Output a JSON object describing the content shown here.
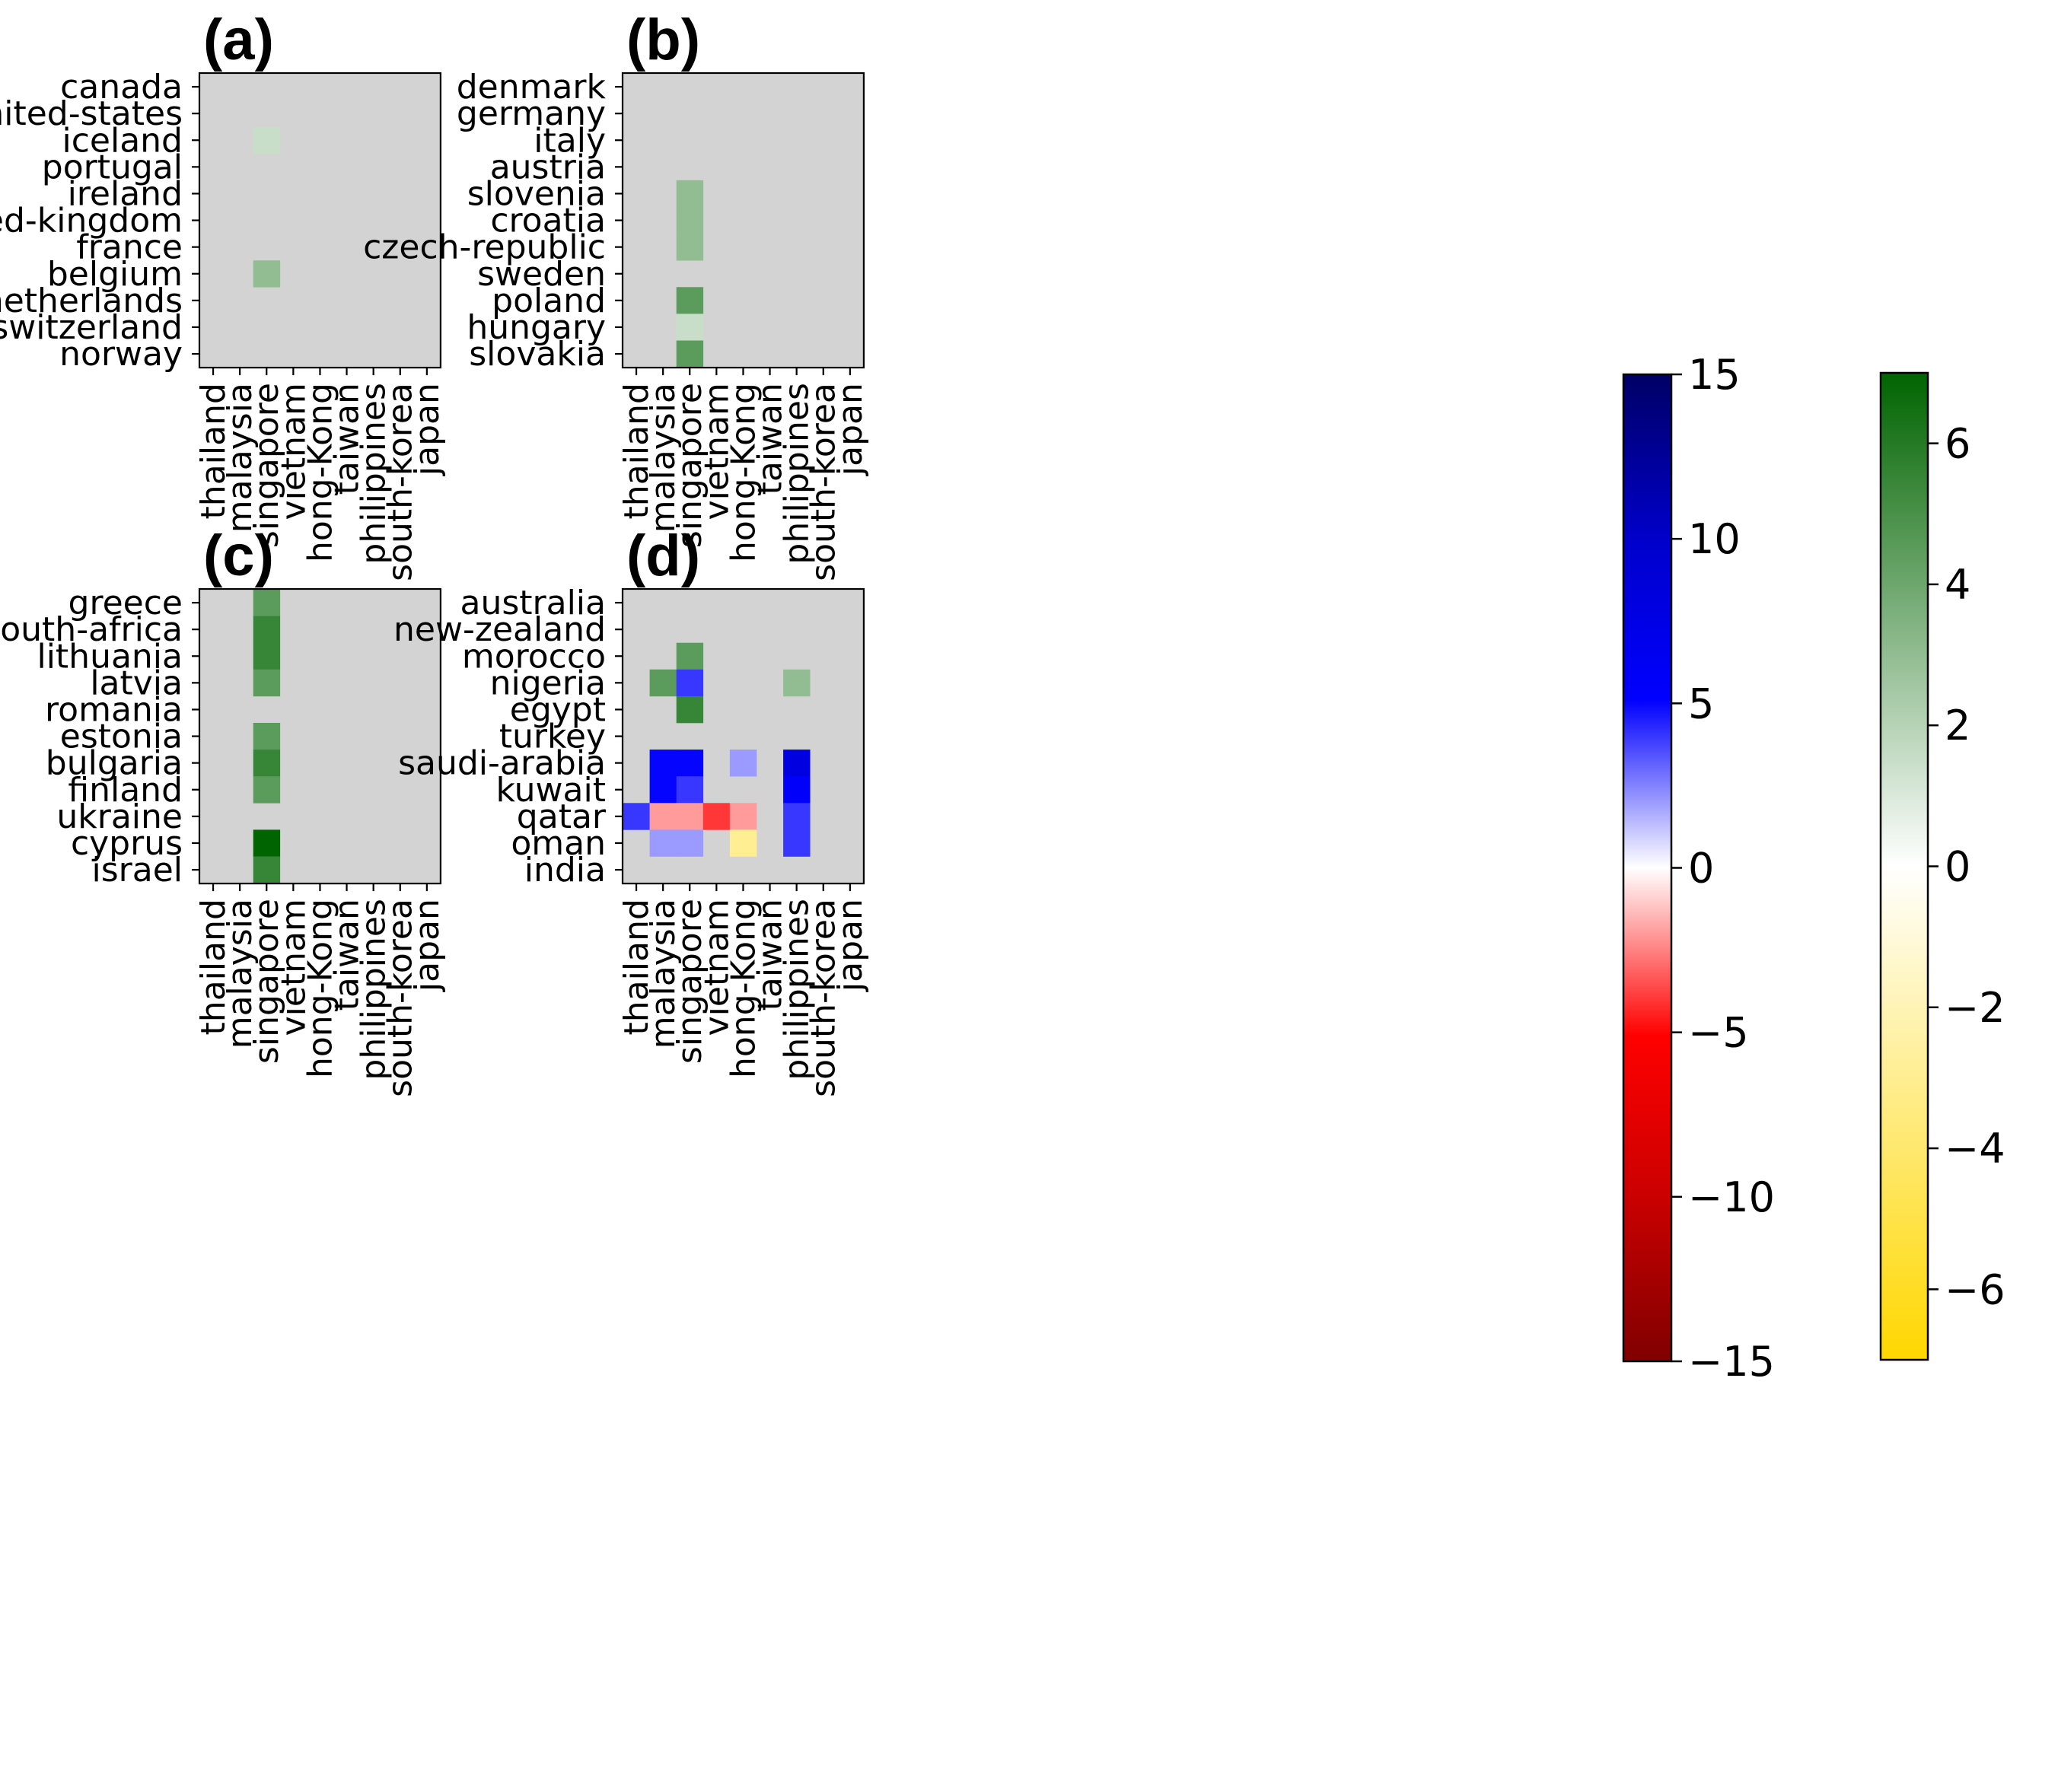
{
  "figure": {
    "colors": {
      "background": "#d3d3d3",
      "axis": "#000000"
    },
    "colormaps": {
      "diverging_blue_red": [
        [
          0,
          "#800000"
        ],
        [
          0.17,
          "#cc0000"
        ],
        [
          0.33,
          "#ff0000"
        ],
        [
          0.5,
          "#ffffff"
        ],
        [
          0.67,
          "#0000ff"
        ],
        [
          0.83,
          "#0000cc"
        ],
        [
          1,
          "#000066"
        ]
      ],
      "diverging_green_yellow": [
        [
          0,
          "#ffd700"
        ],
        [
          0.5,
          "#ffffff"
        ],
        [
          1,
          "#006400"
        ]
      ]
    }
  },
  "chart_data": [
    {
      "type": "heatmap",
      "title": "(a)",
      "columns": [
        "thailand",
        "malaysia",
        "singapore",
        "vietnam",
        "hong-Kong",
        "taiwan",
        "philippines",
        "south-korea",
        "japan"
      ],
      "rows": [
        "canada",
        "united-states",
        "iceland",
        "portugal",
        "ireland",
        "united-kingdom",
        "france",
        "belgium",
        "netherlands",
        "switzerland",
        "norway"
      ],
      "cells": [
        {
          "row": 2,
          "col": 2,
          "scale": "green",
          "value": 1.5
        },
        {
          "row": 7,
          "col": 2,
          "scale": "green",
          "value": 3.0
        }
      ]
    },
    {
      "type": "heatmap",
      "title": "(b)",
      "columns": [
        "thailand",
        "malaysia",
        "singapore",
        "vietnam",
        "hong-Kong",
        "taiwan",
        "philippines",
        "south-korea",
        "japan"
      ],
      "rows": [
        "denmark",
        "germany",
        "italy",
        "austria",
        "slovenia",
        "croatia",
        "czech-republic",
        "sweden",
        "poland",
        "hungary",
        "slovakia"
      ],
      "cells": [
        {
          "row": 4,
          "col": 2,
          "scale": "green",
          "value": 3.0
        },
        {
          "row": 5,
          "col": 2,
          "scale": "green",
          "value": 3.0
        },
        {
          "row": 6,
          "col": 2,
          "scale": "green",
          "value": 3.0
        },
        {
          "row": 8,
          "col": 2,
          "scale": "green",
          "value": 4.5
        },
        {
          "row": 9,
          "col": 2,
          "scale": "green",
          "value": 1.5
        },
        {
          "row": 10,
          "col": 2,
          "scale": "green",
          "value": 4.5
        }
      ]
    },
    {
      "type": "heatmap",
      "title": "(c)",
      "columns": [
        "thailand",
        "malaysia",
        "singapore",
        "vietnam",
        "hong-Kong",
        "taiwan",
        "philippines",
        "south-korea",
        "japan"
      ],
      "rows": [
        "greece",
        "south-africa",
        "lithuania",
        "latvia",
        "romania",
        "estonia",
        "bulgaria",
        "finland",
        "ukraine",
        "cyprus",
        "israel"
      ],
      "cells": [
        {
          "row": 0,
          "col": 2,
          "scale": "green",
          "value": 4.5
        },
        {
          "row": 1,
          "col": 2,
          "scale": "green",
          "value": 5.5
        },
        {
          "row": 2,
          "col": 2,
          "scale": "green",
          "value": 5.5
        },
        {
          "row": 3,
          "col": 2,
          "scale": "green",
          "value": 4.5
        },
        {
          "row": 5,
          "col": 2,
          "scale": "green",
          "value": 4.5
        },
        {
          "row": 6,
          "col": 2,
          "scale": "green",
          "value": 5.5
        },
        {
          "row": 7,
          "col": 2,
          "scale": "green",
          "value": 4.5
        },
        {
          "row": 9,
          "col": 2,
          "scale": "green",
          "value": 7.0
        },
        {
          "row": 10,
          "col": 2,
          "scale": "green",
          "value": 5.5
        }
      ]
    },
    {
      "type": "heatmap",
      "title": "(d)",
      "columns": [
        "thailand",
        "malaysia",
        "singapore",
        "vietnam",
        "hong-Kong",
        "taiwan",
        "philippines",
        "south-korea",
        "japan"
      ],
      "rows": [
        "australia",
        "new-zealand",
        "morocco",
        "nigeria",
        "egypt",
        "turkey",
        "saudi-arabia",
        "kuwait",
        "qatar",
        "oman",
        "india"
      ],
      "cells": [
        {
          "row": 2,
          "col": 2,
          "scale": "green",
          "value": 4.5
        },
        {
          "row": 3,
          "col": 1,
          "scale": "green",
          "value": 4.5
        },
        {
          "row": 3,
          "col": 2,
          "scale": "blue_red",
          "value": 4.0
        },
        {
          "row": 3,
          "col": 6,
          "scale": "green",
          "value": 3.0
        },
        {
          "row": 4,
          "col": 2,
          "scale": "green",
          "value": 5.5
        },
        {
          "row": 6,
          "col": 1,
          "scale": "blue_red",
          "value": 5.0
        },
        {
          "row": 6,
          "col": 2,
          "scale": "blue_red",
          "value": 5.0
        },
        {
          "row": 6,
          "col": 4,
          "scale": "blue_red",
          "value": 2.0
        },
        {
          "row": 6,
          "col": 6,
          "scale": "blue_red",
          "value": 8.0
        },
        {
          "row": 7,
          "col": 1,
          "scale": "blue_red",
          "value": 5.0
        },
        {
          "row": 7,
          "col": 2,
          "scale": "blue_red",
          "value": 4.0
        },
        {
          "row": 7,
          "col": 6,
          "scale": "blue_red",
          "value": 5.5
        },
        {
          "row": 8,
          "col": 0,
          "scale": "blue_red",
          "value": 4.0
        },
        {
          "row": 8,
          "col": 1,
          "scale": "blue_red",
          "value": -2.0
        },
        {
          "row": 8,
          "col": 2,
          "scale": "blue_red",
          "value": -2.0
        },
        {
          "row": 8,
          "col": 3,
          "scale": "blue_red",
          "value": -4.0
        },
        {
          "row": 8,
          "col": 4,
          "scale": "blue_red",
          "value": -2.0
        },
        {
          "row": 8,
          "col": 6,
          "scale": "blue_red",
          "value": 4.0
        },
        {
          "row": 9,
          "col": 1,
          "scale": "blue_red",
          "value": 2.0
        },
        {
          "row": 9,
          "col": 2,
          "scale": "blue_red",
          "value": 2.0
        },
        {
          "row": 9,
          "col": 4,
          "scale": "green",
          "value": -3.0
        },
        {
          "row": 9,
          "col": 6,
          "scale": "blue_red",
          "value": 4.0
        }
      ]
    }
  ],
  "colorbars": [
    {
      "name": "blue-red",
      "scale": "blue_red",
      "range": [
        -15,
        15
      ],
      "ticks": [
        15,
        10,
        5,
        0,
        -5,
        -10,
        -15
      ],
      "tick_labels": [
        "15",
        "10",
        "5",
        "0",
        "−5",
        "−10",
        "−15"
      ]
    },
    {
      "name": "green-yellow",
      "scale": "green",
      "range": [
        -7,
        7
      ],
      "ticks": [
        6,
        4,
        2,
        0,
        -2,
        -4,
        -6
      ],
      "tick_labels": [
        "6",
        "4",
        "2",
        "0",
        "−2",
        "−4",
        "−6"
      ]
    }
  ]
}
